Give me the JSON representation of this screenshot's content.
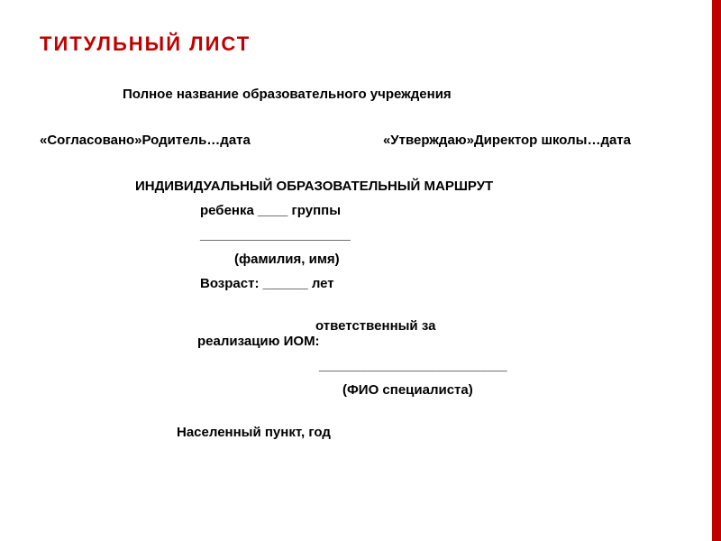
{
  "colors": {
    "accent": "#c00000",
    "title": "#c00000",
    "text": "#000000",
    "background": "#ffffff"
  },
  "title": "ТИТУЛЬНЫЙ ЛИСТ",
  "institution": "Полное название образовательного учреждения",
  "approval": {
    "left": "«Согласовано»Родитель…дата",
    "right": "«Утверждаю»Директор школы…дата"
  },
  "route_heading": "ИНДИВИДУАЛЬНЫЙ ОБРАЗОВАТЕЛЬНЫЙ МАРШРУТ",
  "child_group": "ребенка ____ группы",
  "blank_line": "____________________",
  "surname_hint": "(фамилия, имя)",
  "age_line": "Возраст: ______ лет",
  "responsible_top": "ответственный за",
  "responsible_bottom": "реализацию ИОМ:",
  "specialist_line": "_________________________",
  "specialist_hint": "(ФИО специалиста)",
  "locality": "Населенный пункт, год"
}
